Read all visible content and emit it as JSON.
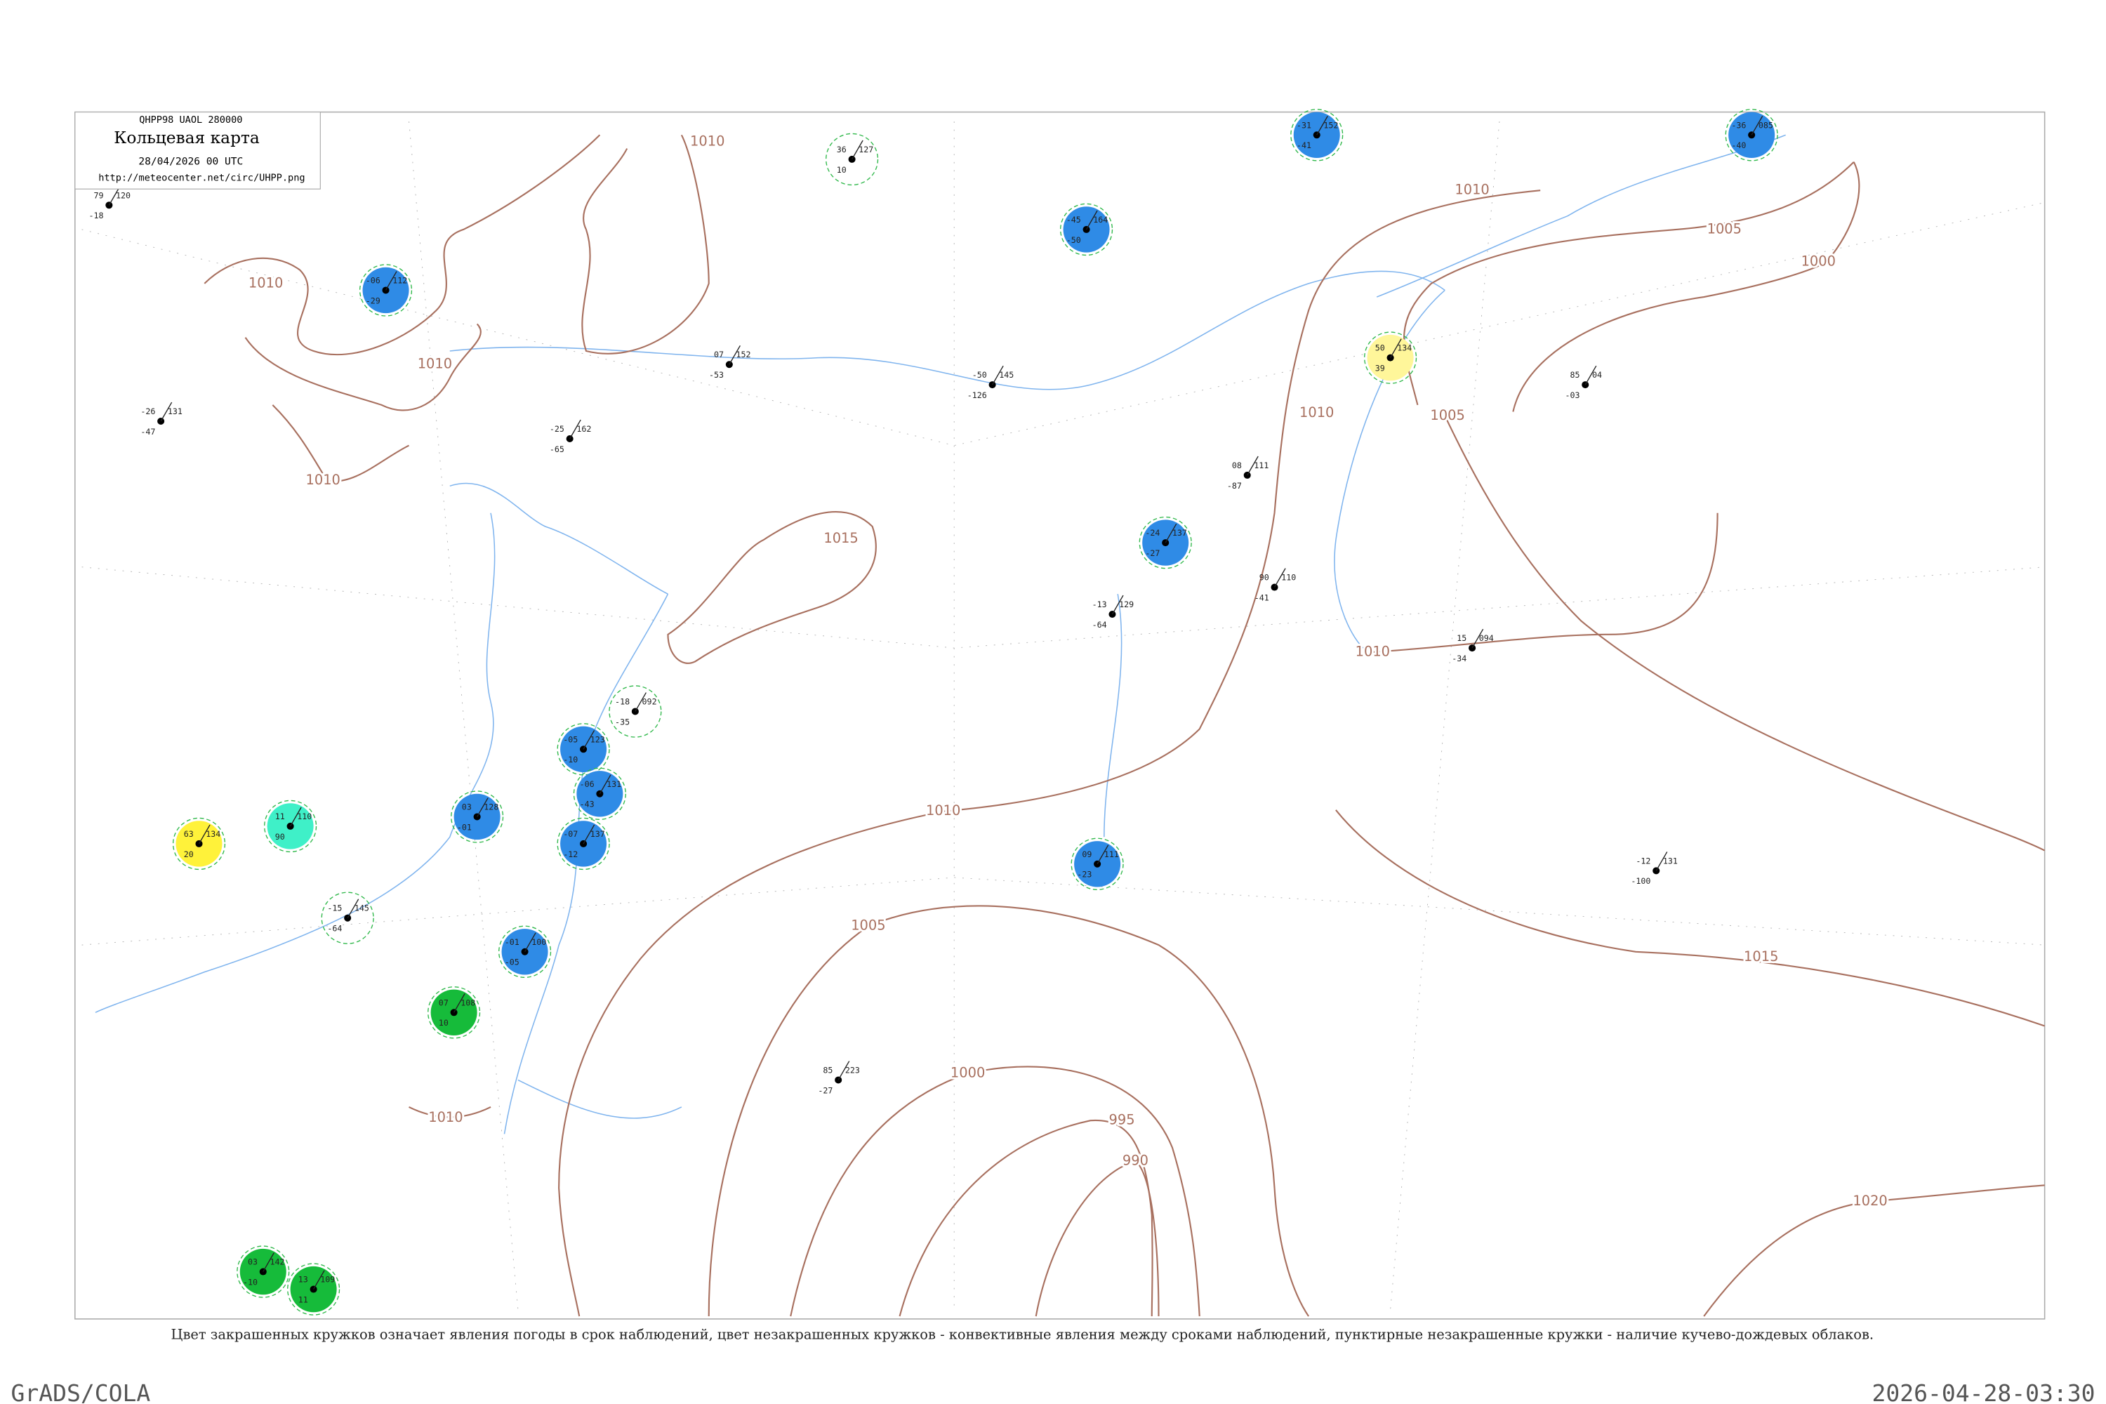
{
  "header": {
    "code": "QHPP98  UAOL  280000",
    "title": "Кольцевая карта",
    "date": "28/04/2026 00 UTC",
    "url": "http://meteocenter.net/circ/UHPP.png"
  },
  "isobars": [
    {
      "label": "1010"
    },
    {
      "label": "1010"
    },
    {
      "label": "1010"
    },
    {
      "label": "1010"
    },
    {
      "label": "1015"
    },
    {
      "label": "1010"
    },
    {
      "label": "1005"
    },
    {
      "label": "1000"
    },
    {
      "label": "1010"
    },
    {
      "label": "1005"
    },
    {
      "label": "1010"
    },
    {
      "label": "1010"
    },
    {
      "label": "1005"
    },
    {
      "label": "1015"
    },
    {
      "label": "1000"
    },
    {
      "label": "995"
    },
    {
      "label": "990"
    },
    {
      "label": "1020"
    },
    {
      "label": "1010"
    }
  ],
  "stations": [
    {
      "temp": "-06",
      "pressure": "112",
      "dew": "-29",
      "circle": "filled",
      "color": "#2f8be6"
    },
    {
      "temp": "-31",
      "pressure": "152",
      "dew": "-41",
      "circle": "filled",
      "color": "#2f8be6"
    },
    {
      "temp": "-36",
      "pressure": "085",
      "dew": "-40",
      "circle": "filled",
      "color": "#2f8be6"
    },
    {
      "temp": "-45",
      "pressure": "164",
      "dew": "-50",
      "circle": "filled",
      "color": "#2f8be6"
    },
    {
      "temp": "-24",
      "pressure": "137",
      "dew": "-27",
      "circle": "filled",
      "color": "#2f8be6"
    },
    {
      "temp": "-05",
      "pressure": "123",
      "dew": "-10",
      "circle": "filled",
      "color": "#2f8be6"
    },
    {
      "temp": "-06",
      "pressure": "131",
      "dew": "-43",
      "circle": "filled",
      "color": "#2f8be6"
    },
    {
      "temp": "03",
      "pressure": "128",
      "dew": "-01",
      "circle": "filled",
      "color": "#2f8be6"
    },
    {
      "temp": "-07",
      "pressure": "137",
      "dew": "-12",
      "circle": "filled",
      "color": "#2f8be6"
    },
    {
      "temp": "-01",
      "pressure": "100",
      "dew": "-05",
      "circle": "filled",
      "color": "#2f8be6"
    },
    {
      "temp": "09",
      "pressure": "111",
      "dew": "-23",
      "circle": "filled",
      "color": "#2f8be6"
    },
    {
      "temp": "07",
      "pressure": "108",
      "dew": "10",
      "circle": "filled",
      "color": "#16bb3a"
    },
    {
      "temp": "13",
      "pressure": "109",
      "dew": "11",
      "circle": "filled",
      "color": "#16bb3a"
    },
    {
      "temp": "03",
      "pressure": "142",
      "dew": "-10",
      "circle": "filled",
      "color": "#16bb3a"
    },
    {
      "temp": "11",
      "pressure": "110",
      "dew": "90",
      "circle": "filled",
      "color": "#3ff0c8"
    },
    {
      "temp": "63",
      "pressure": "134",
      "dew": "20",
      "circle": "filled",
      "color": "#fff23a"
    },
    {
      "temp": "50",
      "pressure": "134",
      "dew": "39",
      "circle": "filled",
      "color": "#fff69a"
    },
    {
      "temp": "-18",
      "pressure": "092",
      "dew": "-35",
      "circle": "ring",
      "color": "#2fb84a"
    },
    {
      "temp": "-15",
      "pressure": "145",
      "dew": "-64",
      "circle": "ring",
      "color": "#2fb84a"
    },
    {
      "temp": "36",
      "pressure": "127",
      "dew": "10",
      "circle": "ring",
      "color": "#2fb84a"
    },
    {
      "temp": "-50",
      "pressure": "145",
      "dew": "-126",
      "circle": "none",
      "color": "#000"
    },
    {
      "temp": "-12",
      "pressure": "131",
      "dew": "-100",
      "circle": "none",
      "color": "#000"
    },
    {
      "temp": "85",
      "pressure": "223",
      "dew": "-27",
      "circle": "none",
      "color": "#000"
    },
    {
      "temp": "85",
      "pressure": "04",
      "dew": "-03",
      "circle": "none",
      "color": "#000"
    },
    {
      "temp": "15",
      "pressure": "094",
      "dew": "-34",
      "circle": "none",
      "color": "#000"
    },
    {
      "temp": "90",
      "pressure": "110",
      "dew": "-41",
      "circle": "none",
      "color": "#000"
    },
    {
      "temp": "08",
      "pressure": "111",
      "dew": "-87",
      "circle": "none",
      "color": "#000"
    },
    {
      "temp": "-13",
      "pressure": "129",
      "dew": "-64",
      "circle": "none",
      "color": "#000"
    },
    {
      "temp": "07",
      "pressure": "152",
      "dew": "-53",
      "circle": "none",
      "color": "#000"
    },
    {
      "temp": "-25",
      "pressure": "162",
      "dew": "-65",
      "circle": "none",
      "color": "#000"
    },
    {
      "temp": "-26",
      "pressure": "131",
      "dew": "-47",
      "circle": "none",
      "color": "#000"
    },
    {
      "temp": "79",
      "pressure": "120",
      "dew": "-18",
      "circle": "none",
      "color": "#000"
    }
  ],
  "caption": "Цвет закрашенных кружков означает явления погоды в срок наблюдений, цвет незакрашенных кружков - конвективные явления между сроками наблюдений, пунктирные незакрашенные кружки - наличие кучево-дождевых облаков.",
  "footer": {
    "left": "GrADS/COLA",
    "right": "2026-04-28-03:30"
  }
}
